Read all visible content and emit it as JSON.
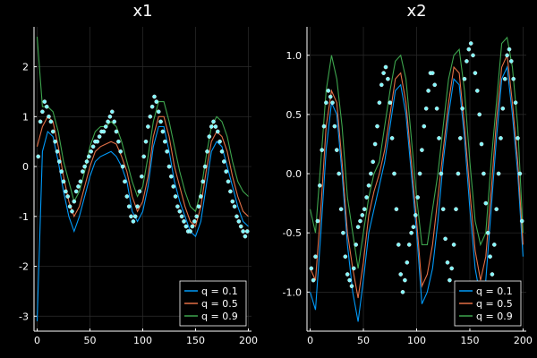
{
  "chart_data": [
    {
      "type": "line",
      "title": "x1",
      "xlim": [
        -3,
        203
      ],
      "ylim": [
        -3.3,
        2.8
      ],
      "xticks": [
        0,
        50,
        100,
        150,
        200
      ],
      "yticks": [
        -3,
        -2,
        -1,
        0,
        1,
        2
      ],
      "xtick_labels": [
        "0",
        "50",
        "100",
        "150",
        "200"
      ],
      "ytick_labels": [
        "-3",
        "-2",
        "-1",
        "0",
        "1",
        "2"
      ],
      "grid": true,
      "legend_position": "bottom-right",
      "x": [
        0,
        5,
        10,
        15,
        20,
        25,
        30,
        35,
        40,
        45,
        50,
        55,
        60,
        65,
        70,
        75,
        80,
        85,
        90,
        95,
        100,
        105,
        110,
        115,
        120,
        125,
        130,
        135,
        140,
        145,
        150,
        155,
        160,
        165,
        170,
        175,
        180,
        185,
        190,
        195,
        200
      ],
      "series": [
        {
          "name": "q = 0.1",
          "color": "#009af9",
          "values": [
            -3.1,
            0.3,
            0.7,
            0.6,
            0.1,
            -0.5,
            -1.0,
            -1.3,
            -1.0,
            -0.6,
            -0.2,
            0.1,
            0.2,
            0.25,
            0.3,
            0.2,
            0.0,
            -0.3,
            -0.9,
            -1.1,
            -0.9,
            -0.4,
            0.4,
            0.8,
            0.8,
            0.3,
            -0.3,
            -0.7,
            -1.0,
            -1.3,
            -1.4,
            -1.1,
            -0.4,
            0.3,
            0.5,
            0.4,
            0.0,
            -0.4,
            -0.8,
            -1.1,
            -1.2
          ]
        },
        {
          "name": "q = 0.5",
          "color": "#e26f46",
          "values": [
            0.4,
            0.8,
            1.0,
            0.9,
            0.4,
            -0.2,
            -0.7,
            -1.0,
            -0.8,
            -0.4,
            0.0,
            0.3,
            0.4,
            0.45,
            0.5,
            0.45,
            0.2,
            -0.1,
            -0.6,
            -0.9,
            -0.7,
            -0.2,
            0.6,
            1.0,
            1.0,
            0.6,
            0.0,
            -0.4,
            -0.8,
            -1.1,
            -1.2,
            -0.8,
            -0.1,
            0.5,
            0.7,
            0.6,
            0.3,
            -0.2,
            -0.6,
            -0.9,
            -1.0
          ]
        },
        {
          "name": "q = 0.9",
          "color": "#3da44d",
          "values": [
            2.6,
            1.2,
            1.2,
            1.1,
            0.7,
            0.1,
            -0.3,
            -0.7,
            -0.5,
            -0.1,
            0.4,
            0.7,
            0.8,
            0.8,
            0.9,
            0.8,
            0.5,
            0.1,
            -0.3,
            -0.6,
            -0.4,
            0.2,
            0.9,
            1.3,
            1.3,
            0.9,
            0.4,
            -0.1,
            -0.5,
            -0.8,
            -0.9,
            -0.5,
            0.2,
            0.8,
            1.0,
            0.9,
            0.6,
            0.1,
            -0.3,
            -0.5,
            -0.6
          ]
        }
      ],
      "points": {
        "color": "#7ff9ff",
        "x": [
          1,
          3,
          5,
          7,
          9,
          11,
          13,
          15,
          17,
          19,
          21,
          23,
          25,
          27,
          29,
          31,
          33,
          35,
          37,
          39,
          41,
          43,
          45,
          47,
          49,
          51,
          53,
          55,
          57,
          59,
          61,
          63,
          65,
          67,
          69,
          71,
          73,
          75,
          77,
          79,
          81,
          83,
          85,
          87,
          89,
          91,
          93,
          95,
          97,
          99,
          101,
          103,
          105,
          107,
          109,
          111,
          113,
          115,
          117,
          119,
          121,
          123,
          125,
          127,
          129,
          131,
          133,
          135,
          137,
          139,
          141,
          143,
          145,
          147,
          149,
          151,
          153,
          155,
          157,
          159,
          161,
          163,
          165,
          167,
          169,
          171,
          173,
          175,
          177,
          179,
          181,
          183,
          185,
          187,
          189,
          191,
          193,
          195,
          197,
          199
        ],
        "y": [
          0.2,
          0.9,
          1.1,
          1.3,
          1.2,
          1.0,
          0.9,
          0.7,
          0.5,
          0.3,
          0.1,
          -0.1,
          -0.3,
          -0.5,
          -0.6,
          -0.8,
          -0.9,
          -0.7,
          -0.5,
          -0.4,
          -0.3,
          -0.1,
          0.0,
          0.1,
          0.2,
          0.3,
          0.4,
          0.5,
          0.5,
          0.6,
          0.7,
          0.7,
          0.8,
          0.9,
          1.0,
          1.1,
          0.9,
          0.7,
          0.5,
          0.3,
          0.0,
          -0.3,
          -0.6,
          -0.8,
          -1.0,
          -1.1,
          -1.0,
          -0.8,
          -0.5,
          -0.2,
          0.2,
          0.5,
          0.8,
          1.0,
          1.2,
          1.4,
          1.3,
          1.1,
          0.9,
          0.7,
          0.5,
          0.3,
          0.0,
          -0.2,
          -0.4,
          -0.6,
          -0.8,
          -0.9,
          -1.0,
          -1.1,
          -1.2,
          -1.3,
          -1.3,
          -1.2,
          -1.1,
          -1.0,
          -0.8,
          -0.6,
          -0.3,
          0.0,
          0.3,
          0.6,
          0.8,
          0.9,
          0.8,
          0.7,
          0.5,
          0.3,
          0.1,
          -0.1,
          -0.3,
          -0.5,
          -0.7,
          -0.8,
          -1.0,
          -1.1,
          -1.2,
          -1.3,
          -1.4,
          -1.3
        ]
      }
    },
    {
      "type": "line",
      "title": "x2",
      "xlim": [
        -3,
        203
      ],
      "ylim": [
        -1.33,
        1.24
      ],
      "xticks": [
        0,
        50,
        100,
        150,
        200
      ],
      "yticks": [
        -1.0,
        -0.5,
        0.0,
        0.5,
        1.0
      ],
      "xtick_labels": [
        "0",
        "50",
        "100",
        "150",
        "200"
      ],
      "ytick_labels": [
        "-1.0",
        "-0.5",
        "0.0",
        "0.5",
        "1.0"
      ],
      "grid": true,
      "legend_position": "bottom-right",
      "x": [
        0,
        5,
        10,
        15,
        20,
        25,
        30,
        35,
        40,
        45,
        50,
        55,
        60,
        65,
        70,
        75,
        80,
        85,
        90,
        95,
        100,
        105,
        110,
        115,
        120,
        125,
        130,
        135,
        140,
        145,
        150,
        155,
        160,
        165,
        170,
        175,
        180,
        185,
        190,
        195,
        200
      ],
      "series": [
        {
          "name": "q = 0.1",
          "color": "#009af9",
          "values": [
            -1.0,
            -1.15,
            -0.5,
            0.2,
            0.6,
            0.5,
            0.0,
            -0.6,
            -1.0,
            -1.25,
            -0.9,
            -0.5,
            -0.3,
            -0.1,
            0.1,
            0.4,
            0.7,
            0.75,
            0.5,
            0.0,
            -0.5,
            -1.1,
            -1.0,
            -0.8,
            -0.4,
            0.1,
            0.5,
            0.8,
            0.75,
            0.3,
            -0.3,
            -0.8,
            -1.05,
            -0.9,
            -0.3,
            0.3,
            0.8,
            0.9,
            0.5,
            0.0,
            -0.7
          ]
        },
        {
          "name": "q = 0.5",
          "color": "#e26f46",
          "values": [
            -0.8,
            -0.9,
            -0.3,
            0.4,
            0.7,
            0.6,
            0.1,
            -0.5,
            -0.8,
            -1.05,
            -0.75,
            -0.35,
            -0.15,
            0.0,
            0.2,
            0.5,
            0.8,
            0.85,
            0.6,
            0.1,
            -0.4,
            -0.95,
            -0.85,
            -0.6,
            -0.2,
            0.2,
            0.6,
            0.9,
            0.85,
            0.4,
            -0.15,
            -0.65,
            -0.9,
            -0.7,
            -0.15,
            0.45,
            0.9,
            1.0,
            0.6,
            0.1,
            -0.6
          ]
        },
        {
          "name": "q = 0.9",
          "color": "#3da44d",
          "values": [
            -0.3,
            -0.5,
            0.1,
            0.7,
            1.0,
            0.8,
            0.4,
            -0.2,
            -0.5,
            -0.8,
            -0.5,
            -0.2,
            0.0,
            0.1,
            0.4,
            0.7,
            0.95,
            1.0,
            0.8,
            0.3,
            -0.2,
            -0.6,
            -0.6,
            -0.3,
            0.0,
            0.4,
            0.8,
            1.0,
            1.05,
            0.7,
            0.1,
            -0.4,
            -0.6,
            -0.5,
            0.1,
            0.6,
            1.1,
            1.15,
            0.9,
            0.4,
            -0.5
          ]
        }
      ],
      "points": {
        "color": "#7ff9ff",
        "x": [
          1,
          3,
          5,
          7,
          9,
          11,
          13,
          15,
          17,
          19,
          21,
          23,
          25,
          27,
          29,
          31,
          33,
          35,
          37,
          39,
          41,
          43,
          45,
          47,
          49,
          51,
          53,
          55,
          57,
          59,
          61,
          63,
          65,
          67,
          69,
          71,
          73,
          75,
          77,
          79,
          81,
          83,
          85,
          87,
          89,
          91,
          93,
          95,
          97,
          99,
          101,
          103,
          105,
          107,
          109,
          111,
          113,
          115,
          117,
          119,
          121,
          123,
          125,
          127,
          129,
          131,
          133,
          135,
          137,
          139,
          141,
          143,
          145,
          147,
          149,
          151,
          153,
          155,
          157,
          159,
          161,
          163,
          165,
          167,
          169,
          171,
          173,
          175,
          177,
          179,
          181,
          183,
          185,
          187,
          189,
          191,
          193,
          195,
          197,
          199
        ],
        "y": [
          -0.8,
          -0.9,
          -0.7,
          -0.4,
          -0.1,
          0.2,
          0.4,
          0.6,
          0.7,
          0.65,
          0.6,
          0.4,
          0.2,
          0.0,
          -0.3,
          -0.5,
          -0.7,
          -0.85,
          -0.9,
          -0.95,
          -0.8,
          -0.6,
          -0.45,
          -0.4,
          -0.35,
          -0.3,
          -0.2,
          -0.1,
          0.0,
          0.1,
          0.25,
          0.4,
          0.6,
          0.75,
          0.85,
          0.9,
          0.8,
          0.6,
          0.3,
          0.0,
          -0.3,
          -0.6,
          -0.85,
          -1.0,
          -0.9,
          -0.75,
          -0.6,
          -0.5,
          -0.45,
          -0.35,
          -0.2,
          0.0,
          0.2,
          0.4,
          0.55,
          0.7,
          0.85,
          0.85,
          0.75,
          0.55,
          0.3,
          0.0,
          -0.3,
          -0.55,
          -0.75,
          -0.9,
          -0.8,
          -0.6,
          -0.3,
          0.0,
          0.3,
          0.55,
          0.8,
          0.95,
          1.05,
          1.1,
          1.0,
          0.85,
          0.7,
          0.5,
          0.25,
          0.0,
          -0.25,
          -0.5,
          -0.7,
          -0.85,
          -0.6,
          -0.3,
          0.0,
          0.3,
          0.55,
          0.8,
          1.0,
          1.05,
          0.95,
          0.8,
          0.6,
          0.3,
          0.0,
          -0.4
        ]
      }
    }
  ]
}
